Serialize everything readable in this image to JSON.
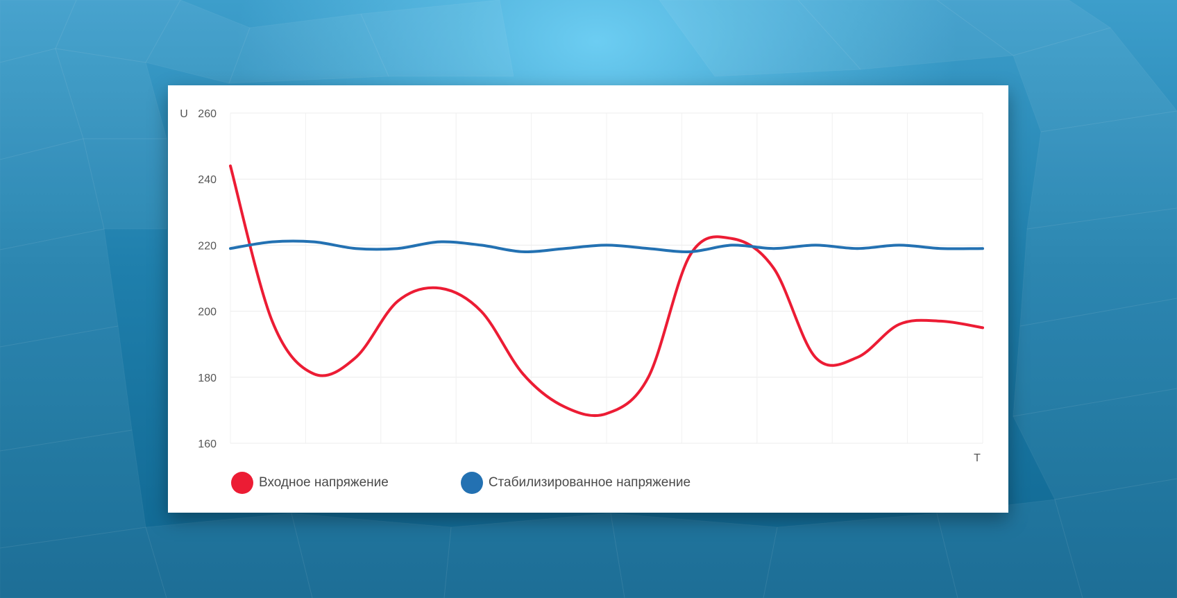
{
  "chart_data": {
    "type": "line",
    "y_axis_label": "U",
    "x_axis_label": "T",
    "ylim": [
      160,
      260
    ],
    "y_ticks": [
      "260",
      "240",
      "220",
      "200",
      "180",
      "160"
    ],
    "x": [
      0,
      1,
      2,
      3,
      4,
      5,
      6,
      7,
      8,
      9,
      10,
      11,
      12,
      13,
      14,
      15,
      16,
      17,
      18
    ],
    "grid": true,
    "legend_position": "bottom-left",
    "series": [
      {
        "name": "Входное напряжение",
        "color": "#ec1c34",
        "values": [
          244,
          197,
          181,
          186,
          203,
          207,
          200,
          181,
          171,
          169,
          180,
          217,
          222,
          213,
          186,
          186,
          196,
          197,
          195
        ]
      },
      {
        "name": "Стабилизированное напряжение",
        "color": "#2371b2",
        "values": [
          219,
          221,
          221,
          219,
          219,
          221,
          220,
          218,
          219,
          220,
          219,
          218,
          220,
          219,
          220,
          219,
          220,
          219,
          219
        ]
      }
    ]
  }
}
